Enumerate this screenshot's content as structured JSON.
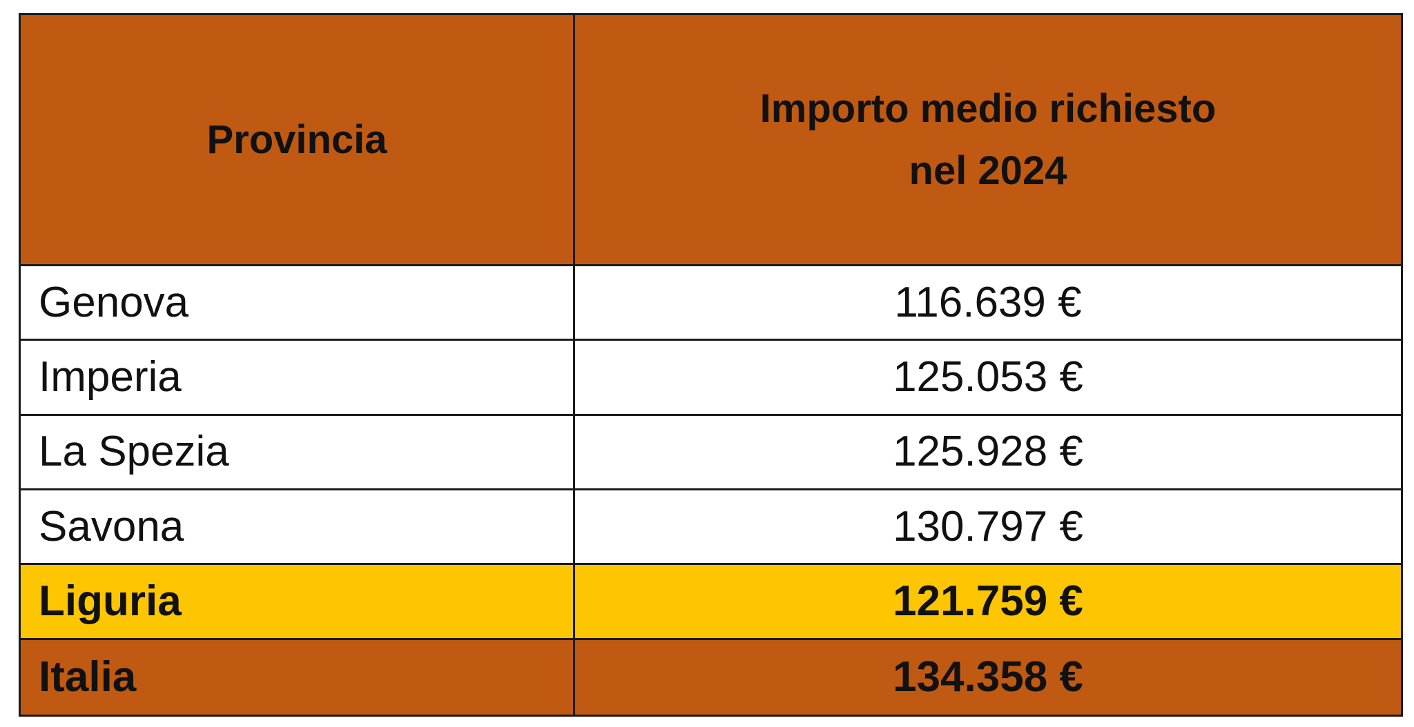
{
  "colors": {
    "header_bg": "#C05A12",
    "row_bg": "#FFFFFF",
    "highlight_bg": "#FEC600",
    "total_bg": "#C05A12",
    "border": "#1A1A1A"
  },
  "table": {
    "headers": [
      "Provincia",
      "Importo medio richiesto\nnel 2024"
    ],
    "rows": [
      {
        "label": "Genova",
        "value": "116.639 €",
        "style": "normal"
      },
      {
        "label": "Imperia",
        "value": "125.053 €",
        "style": "normal"
      },
      {
        "label": "La Spezia",
        "value": "125.928 €",
        "style": "normal"
      },
      {
        "label": "Savona",
        "value": "130.797 €",
        "style": "normal"
      },
      {
        "label": "Liguria",
        "value": "121.759 €",
        "style": "highlight"
      },
      {
        "label": "Italia",
        "value": "134.358 €",
        "style": "total"
      }
    ]
  }
}
